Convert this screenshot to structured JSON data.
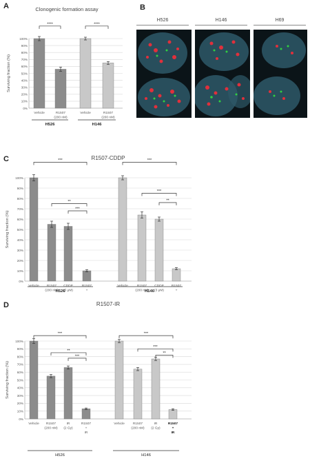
{
  "panels": {
    "A": {
      "letter": "A",
      "title": "Clonogenic formation assay"
    },
    "B": {
      "letter": "B",
      "cells": [
        "H526",
        "H146",
        "H69"
      ]
    },
    "C": {
      "letter": "C",
      "title": "R1507-CDDP"
    },
    "D": {
      "letter": "D",
      "title": "R1507-IR"
    }
  },
  "colors": {
    "dark_bar": "#8c8c8c",
    "light_bar": "#c8c8c8",
    "grid": "#d8d8d8",
    "red_signal": "#e0303c",
    "green_signal": "#30d040",
    "nucleus": "#2e5868"
  },
  "chart_data": [
    {
      "id": "A",
      "type": "bar",
      "title": "Clonogenic formation assay",
      "ylabel": "Surviving fraction (%)",
      "ylim": [
        0,
        100
      ],
      "yticks": [
        "0%",
        "10%",
        "20%",
        "30%",
        "40%",
        "50%",
        "60%",
        "70%",
        "80%",
        "90%",
        "100%"
      ],
      "categories": [
        [
          "Vehicle"
        ],
        [
          "R1507",
          "(200 nM)"
        ],
        [
          "Vehicle"
        ],
        [
          "R1507",
          "(200 nM)"
        ]
      ],
      "values": [
        100,
        56,
        100,
        65
      ],
      "errors": [
        3,
        3,
        2,
        2
      ],
      "groups": [
        {
          "name": "H526",
          "bars": [
            0,
            1
          ]
        },
        {
          "name": "H146",
          "bars": [
            2,
            3
          ]
        }
      ],
      "significance": [
        {
          "from": 0,
          "to": 1,
          "label": "****"
        },
        {
          "from": 2,
          "to": 3,
          "label": "****"
        }
      ]
    },
    {
      "id": "C",
      "type": "bar",
      "title": "R1507-CDDP",
      "ylabel": "Surviving fraction (%)",
      "ylim": [
        0,
        100
      ],
      "yticks": [
        "0%",
        "10%",
        "20%",
        "30%",
        "40%",
        "50%",
        "60%",
        "70%",
        "80%",
        "90%",
        "100%"
      ],
      "categories": [
        [
          "Vehicle"
        ],
        [
          "R1507",
          "(200 nM)"
        ],
        [
          "CDDP",
          "(3 μM)"
        ],
        [
          "R1507",
          "+",
          "CDDP"
        ],
        [
          "Vehicle"
        ],
        [
          "R1507",
          "(200 nM)"
        ],
        [
          "CDDP",
          "(3 μM)"
        ],
        [
          "R1507",
          "+",
          "CDDP"
        ]
      ],
      "values": [
        100,
        55,
        53,
        10,
        100,
        64,
        60,
        12
      ],
      "errors": [
        3,
        3,
        3,
        1,
        2,
        3,
        2,
        1
      ],
      "groups": [
        {
          "name": "H526",
          "bars": [
            0,
            1,
            2,
            3
          ]
        },
        {
          "name": "H146",
          "bars": [
            4,
            5,
            6,
            7
          ]
        }
      ],
      "significance": [
        {
          "from": 0,
          "to": 3,
          "label": "***"
        },
        {
          "from": 1,
          "to": 3,
          "label": "**"
        },
        {
          "from": 2,
          "to": 3,
          "label": "***"
        },
        {
          "from": 4,
          "to": 7,
          "label": "***"
        },
        {
          "from": 5,
          "to": 7,
          "label": "***"
        },
        {
          "from": 6,
          "to": 7,
          "label": "**"
        }
      ]
    },
    {
      "id": "D",
      "type": "bar",
      "title": "R1507-IR",
      "ylabel": "Surviving fraction (%)",
      "ylim": [
        0,
        100
      ],
      "yticks": [
        "0%",
        "10%",
        "20%",
        "30%",
        "40%",
        "50%",
        "60%",
        "70%",
        "80%",
        "90%",
        "100%"
      ],
      "categories": [
        [
          "Vehicle"
        ],
        [
          "R1507",
          "(200 nM)"
        ],
        [
          "IR",
          "(2 Gy)"
        ],
        [
          "R1507",
          "+",
          "IR"
        ],
        [
          "Vehicle"
        ],
        [
          "R1507",
          "(200 nM)"
        ],
        [
          "IR",
          "(2 Gy)"
        ],
        [
          "R1507",
          "+",
          "IR"
        ]
      ],
      "values": [
        100,
        55,
        66,
        13,
        100,
        64,
        77,
        12
      ],
      "errors": [
        3,
        2,
        2,
        1,
        2,
        2,
        2,
        1
      ],
      "groups": [
        {
          "name": "H526",
          "bars": [
            0,
            1,
            2,
            3
          ]
        },
        {
          "name": "H146",
          "bars": [
            4,
            5,
            6,
            7
          ]
        }
      ],
      "significance": [
        {
          "from": 0,
          "to": 3,
          "label": "***"
        },
        {
          "from": 1,
          "to": 3,
          "label": "**"
        },
        {
          "from": 2,
          "to": 3,
          "label": "***"
        },
        {
          "from": 4,
          "to": 7,
          "label": "***"
        },
        {
          "from": 5,
          "to": 7,
          "label": "***"
        },
        {
          "from": 6,
          "to": 7,
          "label": "**"
        }
      ]
    }
  ]
}
